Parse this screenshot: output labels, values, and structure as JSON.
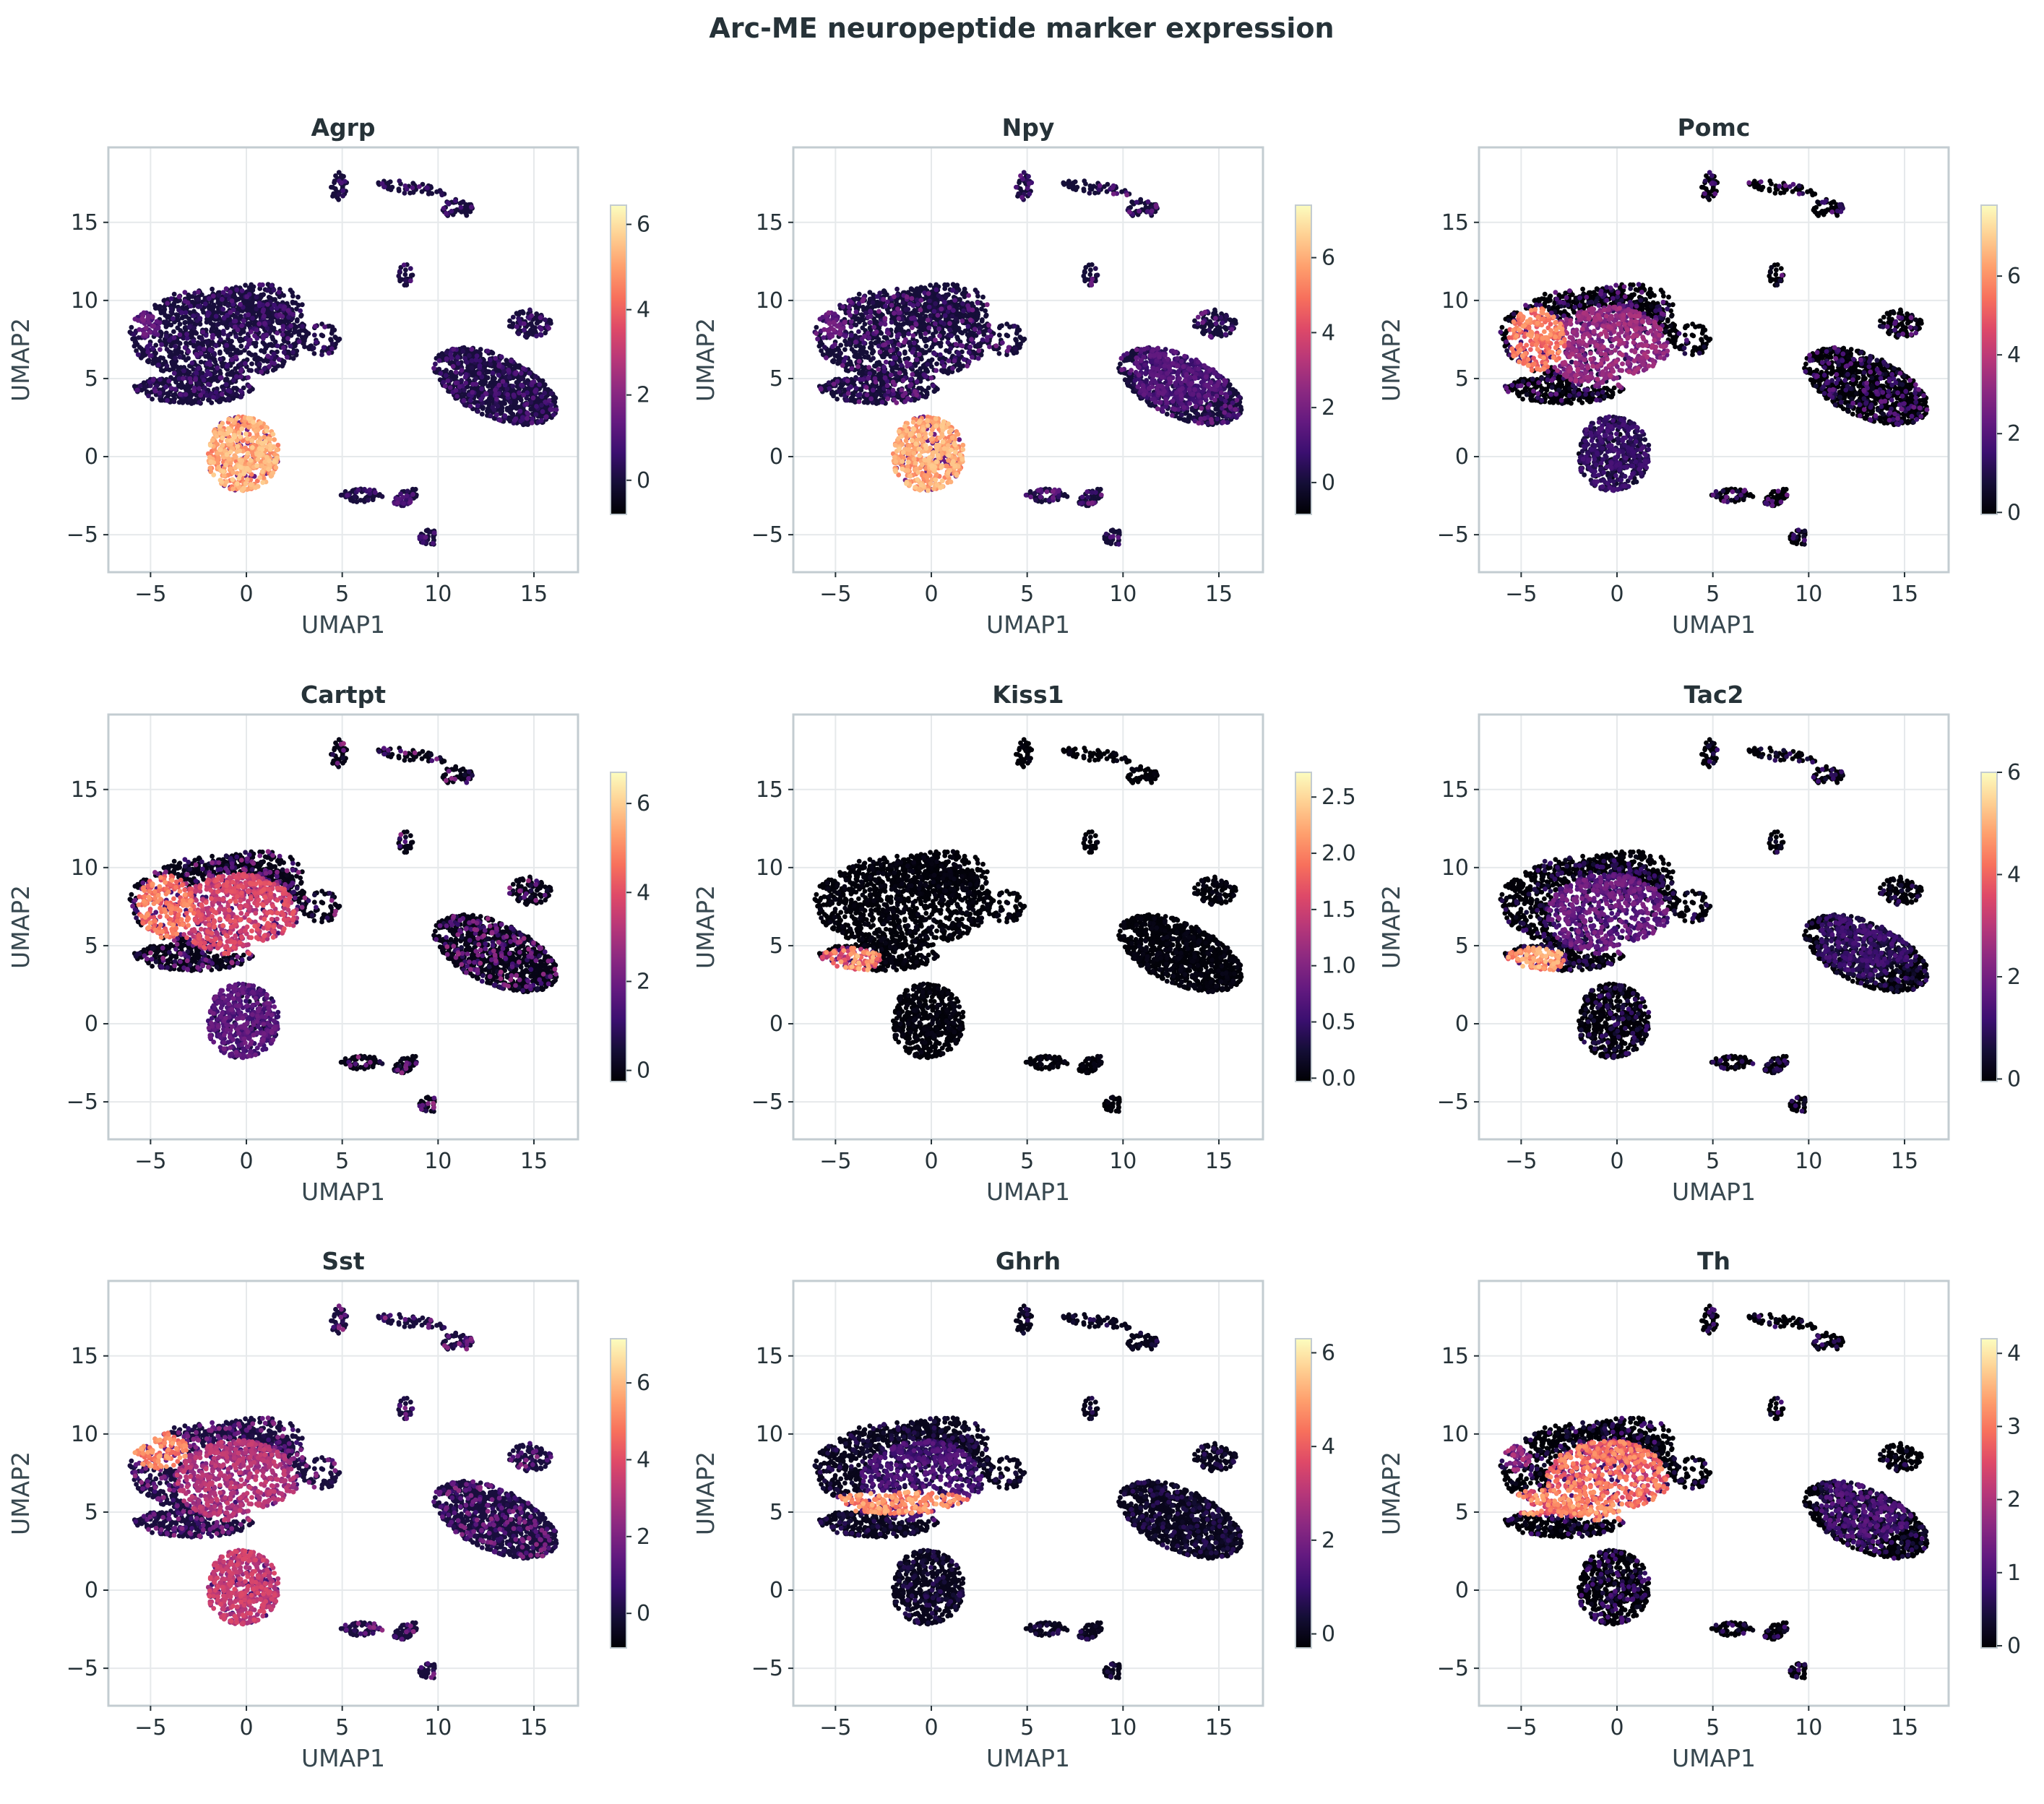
{
  "figure": {
    "title": "Arc-ME neuropeptide marker expression"
  },
  "chart_data": [
    {
      "type": "scatter",
      "title": "Agrp",
      "xlabel": "UMAP1",
      "ylabel": "UMAP2",
      "xlim": [
        -7.2,
        17.3
      ],
      "ylim": [
        -7.4,
        19.8
      ],
      "xticks": [
        -5,
        0,
        5,
        10,
        15
      ],
      "yticks": [
        -5,
        0,
        5,
        10,
        15
      ],
      "grid": true,
      "colormap": "magma",
      "colorbar": {
        "min": -0.8,
        "max": 6.45,
        "ticks": [
          0,
          2,
          4,
          6
        ],
        "tick_labels": [
          "0",
          "2",
          "4",
          "6"
        ]
      },
      "hot_clusters": [
        {
          "cluster": "agrp_npy",
          "level": 5.0
        },
        {
          "cluster": "side_upper",
          "level": 1.2
        },
        {
          "cluster": "tail_lower",
          "level": 0.8
        }
      ],
      "background_level": 0.3
    },
    {
      "type": "scatter",
      "title": "Npy",
      "xlabel": "UMAP1",
      "ylabel": "UMAP2",
      "xlim": [
        -7.2,
        17.3
      ],
      "ylim": [
        -7.4,
        19.8
      ],
      "xticks": [
        -5,
        0,
        5,
        10,
        15
      ],
      "yticks": [
        -5,
        0,
        5,
        10,
        15
      ],
      "grid": true,
      "colormap": "magma",
      "colorbar": {
        "min": -0.85,
        "max": 7.4,
        "ticks": [
          0,
          2,
          4,
          6
        ],
        "tick_labels": [
          "0",
          "2",
          "4",
          "6"
        ]
      },
      "hot_clusters": [
        {
          "cluster": "agrp_npy",
          "level": 5.8
        },
        {
          "cluster": "side_upper",
          "level": 1.5
        },
        {
          "cluster": "right_big",
          "level": 1.0
        }
      ],
      "background_level": 0.5
    },
    {
      "type": "scatter",
      "title": "Pomc",
      "xlabel": "UMAP1",
      "ylabel": "UMAP2",
      "xlim": [
        -7.2,
        17.3
      ],
      "ylim": [
        -7.4,
        19.8
      ],
      "xticks": [
        -5,
        0,
        5,
        10,
        15
      ],
      "yticks": [
        -5,
        0,
        5,
        10,
        15
      ],
      "grid": true,
      "colormap": "magma",
      "colorbar": {
        "min": -0.05,
        "max": 7.8,
        "ticks": [
          0,
          2,
          4,
          6
        ],
        "tick_labels": [
          "0",
          "2",
          "4",
          "6"
        ]
      },
      "hot_clusters": [
        {
          "cluster": "main_left",
          "level": 5.5
        },
        {
          "cluster": "main_center",
          "level": 3.0
        },
        {
          "cluster": "agrp_npy",
          "level": 1.2
        }
      ],
      "background_level": 0.6
    },
    {
      "type": "scatter",
      "title": "Cartpt",
      "xlabel": "UMAP1",
      "ylabel": "UMAP2",
      "xlim": [
        -7.2,
        17.3
      ],
      "ylim": [
        -7.4,
        19.8
      ],
      "xticks": [
        -5,
        0,
        5,
        10,
        15
      ],
      "yticks": [
        -5,
        0,
        5,
        10,
        15
      ],
      "grid": true,
      "colormap": "magma",
      "colorbar": {
        "min": -0.25,
        "max": 6.7,
        "ticks": [
          0,
          2,
          4,
          6
        ],
        "tick_labels": [
          "0",
          "2",
          "4",
          "6"
        ]
      },
      "hot_clusters": [
        {
          "cluster": "main_left",
          "level": 4.5
        },
        {
          "cluster": "main_center",
          "level": 3.5
        },
        {
          "cluster": "agrp_npy",
          "level": 1.5
        }
      ],
      "background_level": 0.7
    },
    {
      "type": "scatter",
      "title": "Kiss1",
      "xlabel": "UMAP1",
      "ylabel": "UMAP2",
      "xlim": [
        -7.2,
        17.3
      ],
      "ylim": [
        -7.4,
        19.8
      ],
      "xticks": [
        -5,
        0,
        5,
        10,
        15
      ],
      "yticks": [
        -5,
        0,
        5,
        10,
        15
      ],
      "grid": true,
      "colormap": "magma",
      "colorbar": {
        "min": -0.03,
        "max": 2.72,
        "ticks": [
          0.0,
          0.5,
          1.0,
          1.5,
          2.0,
          2.5
        ],
        "tick_labels": [
          "0.0",
          "0.5",
          "1.0",
          "1.5",
          "2.0",
          "2.5"
        ]
      },
      "hot_clusters": [
        {
          "cluster": "kndy",
          "level": 1.8
        }
      ],
      "background_level": 0.02
    },
    {
      "type": "scatter",
      "title": "Tac2",
      "xlabel": "UMAP1",
      "ylabel": "UMAP2",
      "xlim": [
        -7.2,
        17.3
      ],
      "ylim": [
        -7.4,
        19.8
      ],
      "xticks": [
        -5,
        0,
        5,
        10,
        15
      ],
      "yticks": [
        -5,
        0,
        5,
        10,
        15
      ],
      "grid": true,
      "colormap": "magma",
      "colorbar": {
        "min": -0.05,
        "max": 6.0,
        "ticks": [
          0,
          2,
          4,
          6
        ],
        "tick_labels": [
          "0",
          "2",
          "4",
          "6"
        ]
      },
      "hot_clusters": [
        {
          "cluster": "kndy",
          "level": 4.6
        },
        {
          "cluster": "main_center",
          "level": 1.6
        },
        {
          "cluster": "right_big",
          "level": 0.8
        }
      ],
      "background_level": 0.3
    },
    {
      "type": "scatter",
      "title": "Sst",
      "xlabel": "UMAP1",
      "ylabel": "UMAP2",
      "xlim": [
        -7.2,
        17.3
      ],
      "ylim": [
        -7.4,
        19.8
      ],
      "xticks": [
        -5,
        0,
        5,
        10,
        15
      ],
      "yticks": [
        -5,
        0,
        5,
        10,
        15
      ],
      "grid": true,
      "colormap": "magma",
      "colorbar": {
        "min": -0.9,
        "max": 7.15,
        "ticks": [
          0,
          2,
          4,
          6
        ],
        "tick_labels": [
          "0",
          "2",
          "4",
          "6"
        ]
      },
      "hot_clusters": [
        {
          "cluster": "upper_left",
          "level": 5.0
        },
        {
          "cluster": "main_center",
          "level": 2.8
        },
        {
          "cluster": "agrp_npy",
          "level": 3.2
        }
      ],
      "background_level": 0.6
    },
    {
      "type": "scatter",
      "title": "Ghrh",
      "xlabel": "UMAP1",
      "ylabel": "UMAP2",
      "xlim": [
        -7.2,
        17.3
      ],
      "ylim": [
        -7.4,
        19.8
      ],
      "xticks": [
        -5,
        0,
        5,
        10,
        15
      ],
      "yticks": [
        -5,
        0,
        5,
        10,
        15
      ],
      "grid": true,
      "colormap": "magma",
      "colorbar": {
        "min": -0.3,
        "max": 6.3,
        "ticks": [
          0,
          2,
          4,
          6
        ],
        "tick_labels": [
          "0",
          "2",
          "4",
          "6"
        ]
      },
      "hot_clusters": [
        {
          "cluster": "ghrh_band",
          "level": 4.6
        },
        {
          "cluster": "main_center",
          "level": 1.0
        }
      ],
      "background_level": 0.2
    },
    {
      "type": "scatter",
      "title": "Th",
      "xlabel": "UMAP1",
      "ylabel": "UMAP2",
      "xlim": [
        -7.2,
        17.3
      ],
      "ylim": [
        -7.4,
        19.8
      ],
      "xticks": [
        -5,
        0,
        5,
        10,
        15
      ],
      "yticks": [
        -5,
        0,
        5,
        10,
        15
      ],
      "grid": true,
      "colormap": "magma",
      "colorbar": {
        "min": -0.03,
        "max": 4.2,
        "ticks": [
          0,
          1,
          2,
          3,
          4
        ],
        "tick_labels": [
          "0",
          "1",
          "2",
          "3",
          "4"
        ]
      },
      "hot_clusters": [
        {
          "cluster": "main_center",
          "level": 2.6
        },
        {
          "cluster": "th_band",
          "level": 2.8
        },
        {
          "cluster": "side_upper",
          "level": 1.6
        },
        {
          "cluster": "right_big",
          "level": 0.6
        }
      ],
      "background_level": 0.25
    }
  ]
}
